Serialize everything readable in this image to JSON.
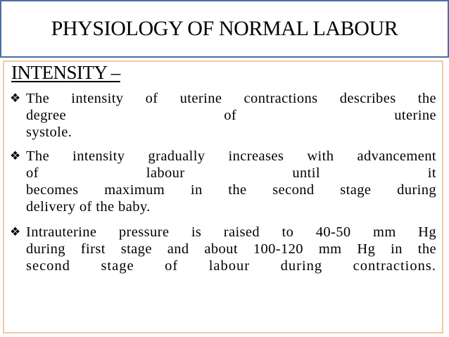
{
  "title": "PHYSIOLOGY OF NORMAL LABOUR",
  "heading": "INTENSITY –",
  "bullets": [
    {
      "lines": [
        "The intensity of uterine contractions describes the",
        "degree of uterine",
        "systole."
      ]
    },
    {
      "lines": [
        "The intensity gradually increases with advancement",
        "of labour until it",
        "becomes maximum in the second stage during",
        "delivery of the baby."
      ]
    },
    {
      "lines": [
        "Intrauterine pressure is raised to 40-50 mm Hg",
        "during first stage and about 100-120 mm Hg in the",
        "second stage of labour during contractions."
      ]
    }
  ],
  "colors": {
    "title_border": "#4a6fa5",
    "content_border": "#f0c9a4"
  },
  "icons": {
    "bullet": "diamond-bullet-icon"
  }
}
